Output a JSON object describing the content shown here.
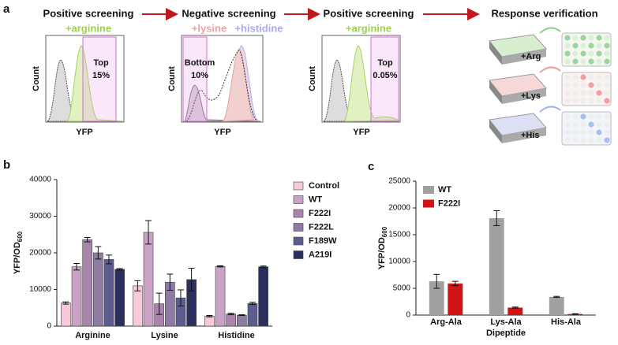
{
  "panel_a": {
    "panel_label": "a",
    "steps": [
      {
        "title": "Positive screening",
        "conditions": [
          "+arginine"
        ],
        "gate": [
          "Top",
          "15%"
        ],
        "y_label": "Count",
        "x_label": "YFP"
      },
      {
        "title": "Negative screening",
        "conditions": [
          "+lysine",
          "+histidine"
        ],
        "gate": [
          "Bottom",
          "10%"
        ],
        "y_label": "Count",
        "x_label": "YFP"
      },
      {
        "title": "Positive screening",
        "conditions": [
          "+arginine"
        ],
        "gate": [
          "Top",
          "0.05%"
        ],
        "y_label": "Count",
        "x_label": "YFP"
      },
      {
        "title": "Response verification",
        "plates": [
          "+Arg",
          "+Lys",
          "+His"
        ]
      }
    ]
  },
  "chart_data": [
    {
      "type": "bar",
      "panel_label": "b",
      "y_label": {
        "main": "YFP/OD",
        "subscript": "600"
      },
      "categories": [
        "Arginine",
        "Lysine",
        "Histidine"
      ],
      "series": [
        {
          "name": "Control",
          "color": "#f7c9da",
          "values": [
            6300,
            11000,
            2700
          ],
          "errors": [
            300,
            1400,
            200
          ]
        },
        {
          "name": "WT",
          "color": "#caa2c6",
          "values": [
            16200,
            25600,
            16300
          ],
          "errors": [
            900,
            3200,
            150
          ]
        },
        {
          "name": "F222I",
          "color": "#a985ac",
          "values": [
            23600,
            6100,
            3300
          ],
          "errors": [
            600,
            2900,
            200
          ]
        },
        {
          "name": "F222L",
          "color": "#8d7ba3",
          "values": [
            20000,
            12000,
            3000
          ],
          "errors": [
            1700,
            2200,
            100
          ]
        },
        {
          "name": "F189W",
          "color": "#5b5d8e",
          "values": [
            18200,
            7700,
            6200
          ],
          "errors": [
            1200,
            2200,
            300
          ]
        },
        {
          "name": "A219I",
          "color": "#2b2f5e",
          "values": [
            15500,
            12700,
            16200
          ],
          "errors": [
            200,
            3100,
            200
          ]
        }
      ],
      "ylim": [
        0,
        40000
      ],
      "yticks": [
        0,
        10000,
        20000,
        30000,
        40000
      ],
      "legend": "right"
    },
    {
      "type": "bar",
      "panel_label": "c",
      "y_label": {
        "main": "YFP/OD",
        "subscript": "600"
      },
      "x_label": "Dipeptide",
      "categories": [
        "Arg-Ala",
        "Lys-Ala",
        "His-Ala"
      ],
      "series": [
        {
          "name": "WT",
          "color": "#a0a0a0",
          "values": [
            6300,
            18100,
            3400
          ],
          "errors": [
            1300,
            1400,
            100
          ]
        },
        {
          "name": "F222I",
          "color": "#d01313",
          "values": [
            5900,
            1400,
            200
          ],
          "errors": [
            400,
            100,
            50
          ]
        }
      ],
      "ylim": [
        0,
        25000
      ],
      "yticks": [
        0,
        5000,
        10000,
        15000,
        20000,
        25000
      ],
      "legend": "upper left"
    }
  ]
}
